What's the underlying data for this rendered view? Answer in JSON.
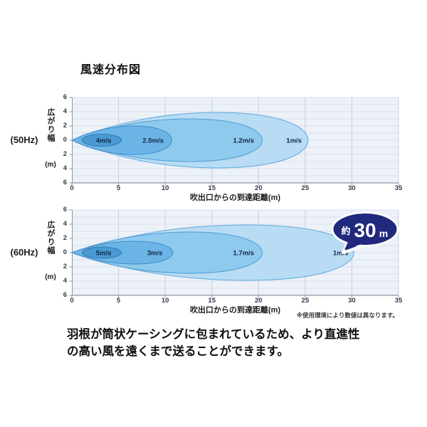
{
  "title": "風速分布図",
  "x_axis": {
    "title": "吹出口からの到達距離(m)",
    "ticks": [
      "0",
      "5",
      "10",
      "15",
      "20",
      "25",
      "30",
      "35"
    ],
    "max": 35
  },
  "y_axis": {
    "label": "広がり幅(m)",
    "label_vertical": "広がり幅",
    "label_unit": "(m)",
    "ticks": [
      "6",
      "4",
      "2",
      "0",
      "2",
      "4",
      "6"
    ],
    "max": 6
  },
  "note": "※使用環境により数値は異なります。",
  "caption": {
    "line1": "羽根が筒状ケーシングに包まれているため、より直進性",
    "line2": "の高い風を遠くまで送ることができます。"
  },
  "badge": {
    "prefix": "約",
    "value": "30",
    "unit": "m"
  },
  "colors": {
    "plot_bg": "#edf1f8",
    "hgrid": "#d9e1ef",
    "vgrid": "#c4d0e5",
    "axis": "#8a94a9",
    "zone_fills": [
      "#b7dcf4",
      "#8ecaee",
      "#6bb5e6",
      "#4a99d2"
    ],
    "zone_strokes": [
      "#5fa8da",
      "#4f9cd2",
      "#418cc6",
      "#3579b2"
    ],
    "zone_label_text": "#132743",
    "badge_fill": "#20297c",
    "badge_text": "#ffffff"
  },
  "chart_data": [
    {
      "type": "area",
      "title": "(50Hz)",
      "xlabel": "吹出口からの到達距離(m)",
      "ylabel": "広がり幅(m)",
      "xlim": [
        0,
        35
      ],
      "ylim": [
        -6,
        6
      ],
      "grid": true,
      "series": [
        {
          "name": "1m/s",
          "shape": "teardrop",
          "reach_m": 25.3,
          "max_half_width_m": 3.9,
          "label_x": 23.8
        },
        {
          "name": "1.2m/s",
          "shape": "teardrop",
          "reach_m": 20.4,
          "max_half_width_m": 3.0,
          "label_x": 18.4
        },
        {
          "name": "2.5m/s",
          "shape": "teardrop",
          "reach_m": 10.7,
          "max_half_width_m": 2.0,
          "label_x": 8.7
        },
        {
          "name": "4m/s",
          "shape": "ellipse",
          "center_m": 3.2,
          "rx_m": 2.1,
          "ry_m": 0.85,
          "label_x": 3.4
        }
      ]
    },
    {
      "type": "area",
      "title": "(60Hz)",
      "xlabel": "吹出口からの到達距離(m)",
      "ylabel": "広がり幅(m)",
      "xlim": [
        0,
        35
      ],
      "ylim": [
        -6,
        6
      ],
      "grid": true,
      "annotation": {
        "text": "約30m",
        "at_x": 30
      },
      "series": [
        {
          "name": "1m/s",
          "shape": "teardrop",
          "reach_m": 30.2,
          "max_half_width_m": 3.9,
          "label_x": 28.8
        },
        {
          "name": "1.7m/s",
          "shape": "teardrop",
          "reach_m": 20.4,
          "max_half_width_m": 2.9,
          "label_x": 18.4
        },
        {
          "name": "3m/s",
          "shape": "teardrop",
          "reach_m": 10.8,
          "max_half_width_m": 1.6,
          "label_x": 8.9
        },
        {
          "name": "5m/s",
          "shape": "ellipse",
          "center_m": 3.2,
          "rx_m": 2.1,
          "ry_m": 0.8,
          "label_x": 3.4
        }
      ]
    }
  ]
}
